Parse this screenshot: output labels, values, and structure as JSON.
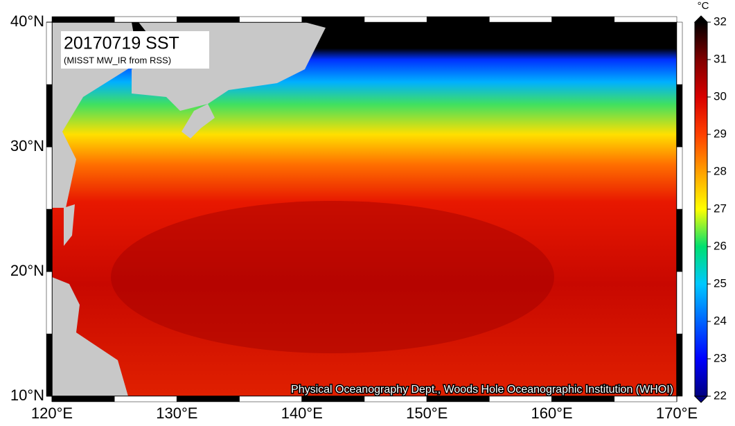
{
  "map": {
    "title": "20170719 SST",
    "subtitle": "(MISST MW_IR from RSS)",
    "credit": "Physical Oceanography Dept., Woods Hole Oceanographic Institution (WHOI)",
    "xlim": [
      120,
      170
    ],
    "ylim": [
      10,
      40
    ],
    "xticks": [
      {
        "value": 120,
        "label": "120°E"
      },
      {
        "value": 130,
        "label": "130°E"
      },
      {
        "value": 140,
        "label": "140°E"
      },
      {
        "value": 150,
        "label": "150°E"
      },
      {
        "value": 160,
        "label": "160°E"
      },
      {
        "value": 170,
        "label": "170°E"
      }
    ],
    "yticks": [
      {
        "value": 10,
        "label": "10°N"
      },
      {
        "value": 20,
        "label": "20°N"
      },
      {
        "value": 30,
        "label": "30°N"
      },
      {
        "value": 40,
        "label": "40°N"
      }
    ],
    "colorbar": {
      "label": "°C",
      "lim": [
        22,
        32
      ],
      "ticks": [
        22,
        23,
        24,
        25,
        26,
        27,
        28,
        29,
        30,
        31,
        32
      ],
      "colors": [
        "#000080",
        "#0000ff",
        "#0064ff",
        "#00c8ff",
        "#00e070",
        "#ffff00",
        "#ffa000",
        "#ff4000",
        "#d80000",
        "#800000",
        "#000000"
      ]
    }
  }
}
